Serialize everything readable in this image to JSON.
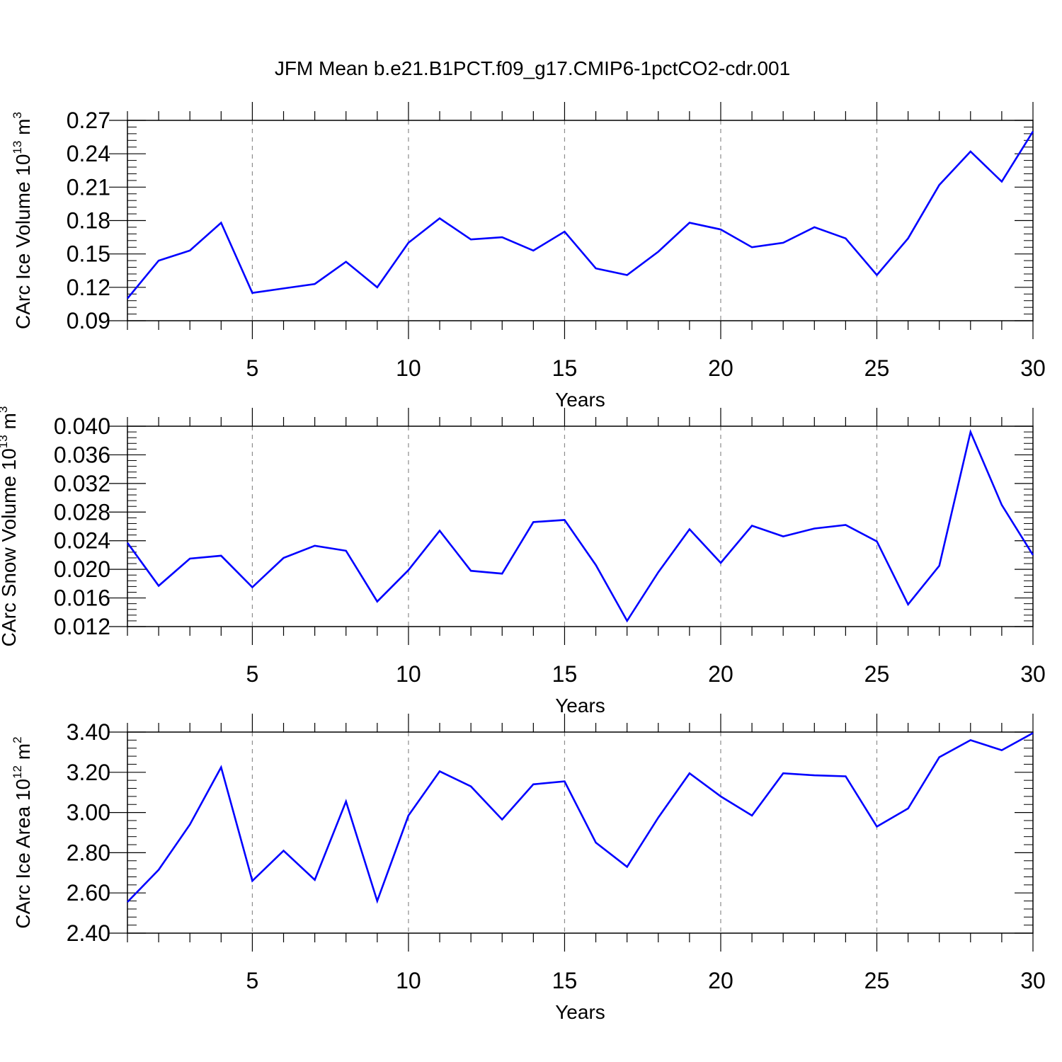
{
  "figure": {
    "title": "JFM Mean b.e21.B1PCT.f09_g17.CMIP6-1pctCO2-cdr.001"
  },
  "colors": {
    "series": "#0000ff",
    "axis": "#000000",
    "grid": "#8c8c8c",
    "background": "#ffffff"
  },
  "chart_data": [
    {
      "type": "line",
      "title": "",
      "xlabel": "Years",
      "ylabel": {
        "main": "CArc Ice Volume 10",
        "exp": "13",
        "unit": "m",
        "unit_exp": "3"
      },
      "xlim": [
        1,
        30
      ],
      "ylim": [
        0.09,
        0.27
      ],
      "x_ticks": [
        5,
        10,
        15,
        20,
        25,
        30
      ],
      "y_ticks": [
        "0.09",
        "0.12",
        "0.15",
        "0.18",
        "0.21",
        "0.24",
        "0.27"
      ],
      "vertical_grid": true,
      "x": [
        1,
        2,
        3,
        4,
        5,
        6,
        7,
        8,
        9,
        10,
        11,
        12,
        13,
        14,
        15,
        16,
        17,
        18,
        19,
        20,
        21,
        22,
        23,
        24,
        25,
        26,
        27,
        28,
        29,
        30
      ],
      "y": [
        0.11,
        0.144,
        0.153,
        0.178,
        0.115,
        0.119,
        0.123,
        0.143,
        0.12,
        0.16,
        0.182,
        0.163,
        0.165,
        0.153,
        0.17,
        0.137,
        0.131,
        0.152,
        0.178,
        0.172,
        0.156,
        0.16,
        0.174,
        0.164,
        0.131,
        0.164,
        0.212,
        0.242,
        0.215,
        0.26
      ]
    },
    {
      "type": "line",
      "title": "",
      "xlabel": "Years",
      "ylabel": {
        "main": "CArc Snow Volume 10",
        "exp": "13",
        "unit": "m",
        "unit_exp": "3"
      },
      "xlim": [
        1,
        30
      ],
      "ylim": [
        0.012,
        0.04
      ],
      "x_ticks": [
        5,
        10,
        15,
        20,
        25,
        30
      ],
      "y_ticks": [
        "0.012",
        "0.016",
        "0.020",
        "0.024",
        "0.028",
        "0.032",
        "0.036",
        "0.040"
      ],
      "vertical_grid": true,
      "x": [
        1,
        2,
        3,
        4,
        5,
        6,
        7,
        8,
        9,
        10,
        11,
        12,
        13,
        14,
        15,
        16,
        17,
        18,
        19,
        20,
        21,
        22,
        23,
        24,
        25,
        26,
        27,
        28,
        29,
        30
      ],
      "y": [
        0.0237,
        0.0177,
        0.0215,
        0.0219,
        0.0175,
        0.0216,
        0.0233,
        0.0226,
        0.0155,
        0.0199,
        0.0254,
        0.0198,
        0.0194,
        0.0266,
        0.0269,
        0.0206,
        0.0128,
        0.0196,
        0.0256,
        0.0209,
        0.0261,
        0.0246,
        0.0257,
        0.0262,
        0.0239,
        0.0151,
        0.0205,
        0.0392,
        0.029,
        0.022
      ]
    },
    {
      "type": "line",
      "title": "",
      "xlabel": "Years",
      "ylabel": {
        "main": "CArc Ice Area 10",
        "exp": "12",
        "unit": "m",
        "unit_exp": "2"
      },
      "xlim": [
        1,
        30
      ],
      "ylim": [
        2.4,
        3.4
      ],
      "x_ticks": [
        5,
        10,
        15,
        20,
        25,
        30
      ],
      "y_ticks": [
        "2.40",
        "2.60",
        "2.80",
        "3.00",
        "3.20",
        "3.40"
      ],
      "vertical_grid": true,
      "x": [
        1,
        2,
        3,
        4,
        5,
        6,
        7,
        8,
        9,
        10,
        11,
        12,
        13,
        14,
        15,
        16,
        17,
        18,
        19,
        20,
        21,
        22,
        23,
        24,
        25,
        26,
        27,
        28,
        29,
        30
      ],
      "y": [
        2.555,
        2.715,
        2.94,
        3.225,
        2.66,
        2.81,
        2.665,
        3.055,
        2.56,
        2.985,
        3.205,
        3.13,
        2.965,
        3.14,
        3.155,
        2.85,
        2.73,
        2.975,
        3.195,
        3.08,
        2.985,
        3.195,
        3.185,
        3.18,
        2.93,
        3.02,
        3.275,
        3.36,
        3.31,
        3.395
      ]
    }
  ]
}
